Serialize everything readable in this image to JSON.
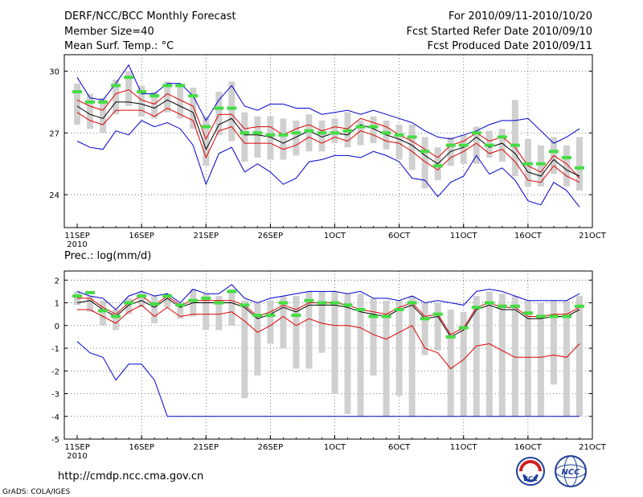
{
  "header": {
    "title": "DERF/NCC/BCC Monthly Forecast",
    "member_size": "Member Size=40",
    "variable": "Mean Surf. Temp.: °C",
    "period": "For 2010/09/11-2010/10/20",
    "start_date": "Fcst Started Refer Date 2010/09/10",
    "produced_date": "Fcst Produced Date 2010/09/11"
  },
  "footer": {
    "url": "http://cmdp.ncc.cma.gov.cn",
    "credit": "GrADS: COLA/IGES",
    "logo_bcc_text": "BCC",
    "logo_ncc_text": "NCC"
  },
  "colors": {
    "max_min": "#0000cc",
    "spread": "#dd0000",
    "mean": "#000000",
    "median": "#44dd44",
    "box": "#d0d0d0"
  },
  "chart_data": [
    {
      "type": "line",
      "id": "temp",
      "title": "Mean Surf. Temp.: °C",
      "days": 40,
      "ylim": [
        22.4,
        30.8
      ],
      "yticks": [
        24,
        27,
        30
      ],
      "xtick_days": [
        0,
        5,
        10,
        15,
        20,
        25,
        30,
        35,
        40
      ],
      "xtick_labels": [
        "11SEP",
        "16SEP",
        "21SEP",
        "26SEP",
        "1OCT",
        "6OCT",
        "11OCT",
        "16OCT",
        "21OCT"
      ],
      "xyear": "2010",
      "series": [
        {
          "name": "max",
          "values": [
            29.7,
            28.7,
            28.6,
            29.4,
            30.3,
            28.9,
            28.9,
            29.4,
            29.4,
            28.8,
            27.6,
            28.6,
            29.3,
            28.3,
            28.1,
            28.4,
            28.4,
            28.2,
            28.2,
            27.9,
            28.0,
            28.1,
            27.9,
            28.1,
            27.9,
            27.7,
            27.5,
            27.1,
            26.8,
            26.7,
            26.9,
            27.1,
            27.4,
            27.6,
            27.6,
            27.7,
            27.1,
            26.5,
            26.8,
            27.2
          ]
        },
        {
          "name": "upper",
          "values": [
            28.6,
            28.3,
            28.1,
            28.9,
            29.1,
            28.6,
            28.4,
            28.9,
            28.6,
            28.3,
            26.7,
            27.9,
            27.9,
            27.2,
            27.3,
            27.3,
            26.9,
            27.2,
            27.4,
            27.1,
            27.3,
            27.2,
            27.7,
            27.5,
            27.3,
            26.9,
            26.6,
            26.2,
            25.8,
            26.4,
            26.6,
            27.0,
            26.6,
            26.8,
            26.3,
            25.4,
            25.1,
            25.9,
            25.5,
            24.8
          ]
        },
        {
          "name": "mean",
          "values": [
            28.3,
            27.9,
            27.7,
            28.5,
            28.5,
            28.4,
            28.2,
            28.6,
            28.3,
            28.0,
            26.2,
            27.4,
            27.7,
            26.9,
            26.9,
            26.8,
            26.5,
            26.8,
            27.1,
            26.8,
            27.0,
            26.9,
            27.4,
            27.2,
            26.9,
            26.7,
            26.4,
            25.9,
            25.5,
            26.1,
            26.3,
            26.8,
            26.3,
            26.5,
            26.0,
            25.1,
            24.9,
            25.7,
            25.2,
            24.9
          ]
        },
        {
          "name": "lower",
          "values": [
            28.0,
            27.6,
            27.4,
            28.1,
            28.1,
            28.1,
            27.8,
            28.2,
            27.9,
            27.6,
            25.8,
            27.1,
            27.3,
            26.5,
            26.5,
            26.5,
            26.2,
            26.4,
            26.8,
            26.5,
            26.8,
            26.6,
            27.1,
            26.9,
            26.6,
            26.5,
            26.1,
            25.6,
            25.2,
            25.8,
            26.1,
            26.5,
            26.0,
            26.2,
            25.6,
            24.7,
            24.6,
            25.4,
            24.9,
            24.6
          ]
        },
        {
          "name": "min",
          "values": [
            26.6,
            26.3,
            26.2,
            27.1,
            26.9,
            27.6,
            27.3,
            27.5,
            27.2,
            26.4,
            24.5,
            26.0,
            26.3,
            25.1,
            25.5,
            25.1,
            24.5,
            24.8,
            25.6,
            25.7,
            25.9,
            25.9,
            25.8,
            26.1,
            25.9,
            25.6,
            24.8,
            24.7,
            23.9,
            24.6,
            24.9,
            25.9,
            25.0,
            25.3,
            24.7,
            23.7,
            23.5,
            24.6,
            24.2,
            23.4
          ]
        },
        {
          "name": "median",
          "values": [
            29.0,
            28.5,
            28.5,
            29.3,
            29.7,
            29.0,
            28.8,
            29.3,
            29.3,
            28.8,
            27.3,
            28.2,
            28.2,
            27.0,
            27.0,
            26.9,
            26.9,
            27.0,
            27.1,
            27.0,
            27.0,
            27.1,
            27.3,
            27.3,
            27.0,
            26.9,
            26.8,
            26.1,
            25.4,
            26.4,
            26.4,
            27.0,
            26.4,
            26.8,
            26.4,
            25.5,
            25.5,
            26.1,
            25.8,
            25.3
          ]
        },
        {
          "name": "box_top",
          "values": [
            29.4,
            28.9,
            28.7,
            29.6,
            30.0,
            29.3,
            29.0,
            29.5,
            29.4,
            29.2,
            27.8,
            29.0,
            29.5,
            28.0,
            27.8,
            27.8,
            27.7,
            27.6,
            27.9,
            27.6,
            27.7,
            28.0,
            27.6,
            27.8,
            27.6,
            27.4,
            27.4,
            26.8,
            26.3,
            26.8,
            26.9,
            27.3,
            27.1,
            27.2,
            28.6,
            26.7,
            26.4,
            26.8,
            26.4,
            26.8
          ]
        },
        {
          "name": "box_bottom",
          "values": [
            27.4,
            27.2,
            27.0,
            27.9,
            28.3,
            27.8,
            27.7,
            28.0,
            27.7,
            27.2,
            25.4,
            26.9,
            26.6,
            25.6,
            25.8,
            25.7,
            25.7,
            25.9,
            26.1,
            26.1,
            26.5,
            26.3,
            26.4,
            26.5,
            26.2,
            25.7,
            25.2,
            24.3,
            24.7,
            25.4,
            25.5,
            25.5,
            25.8,
            25.6,
            24.9,
            24.4,
            24.4,
            25.0,
            24.4,
            24.2
          ]
        }
      ]
    },
    {
      "type": "line",
      "id": "prec",
      "title": "Prec.: log(mm/d)",
      "days": 40,
      "ylim": [
        -5,
        2.4
      ],
      "yticks": [
        -5,
        -4,
        -3,
        -2,
        -1,
        0,
        1,
        2
      ],
      "xtick_days": [
        0,
        5,
        10,
        15,
        20,
        25,
        30,
        35,
        40
      ],
      "xtick_labels": [
        "11SEP",
        "16SEP",
        "21SEP",
        "26SEP",
        "1OCT",
        "6OCT",
        "11OCT",
        "16OCT",
        "21OCT"
      ],
      "xyear": "2010",
      "series": [
        {
          "name": "max",
          "values": [
            1.5,
            1.3,
            1.2,
            0.7,
            1.3,
            1.5,
            1.3,
            1.4,
            1.0,
            1.6,
            1.4,
            1.4,
            1.8,
            1.2,
            1.0,
            1.2,
            1.3,
            1.4,
            1.5,
            1.5,
            1.5,
            1.4,
            1.5,
            1.2,
            1.2,
            1.1,
            1.3,
            1.0,
            1.1,
            1.0,
            0.9,
            1.5,
            1.6,
            1.5,
            1.3,
            1.1,
            1.1,
            1.1,
            1.1,
            1.4
          ]
        },
        {
          "name": "upper",
          "values": [
            1.2,
            1.2,
            0.8,
            0.5,
            1.0,
            1.3,
            0.9,
            1.3,
            0.9,
            1.1,
            1.1,
            1.1,
            1.1,
            0.9,
            0.4,
            0.6,
            0.9,
            0.7,
            1.0,
            1.0,
            1.0,
            0.9,
            0.7,
            0.6,
            0.5,
            0.8,
            1.0,
            0.4,
            0.5,
            -0.4,
            -0.1,
            0.8,
            1.0,
            0.8,
            0.8,
            0.4,
            0.4,
            0.5,
            0.5,
            0.8
          ]
        },
        {
          "name": "mean",
          "values": [
            1.0,
            1.1,
            0.7,
            0.4,
            0.9,
            1.1,
            0.8,
            1.2,
            0.8,
            1.0,
            1.0,
            1.0,
            1.0,
            0.8,
            0.3,
            0.5,
            0.8,
            0.6,
            0.9,
            0.9,
            0.9,
            0.8,
            0.6,
            0.5,
            0.4,
            0.7,
            0.9,
            0.3,
            0.4,
            -0.5,
            -0.2,
            0.7,
            0.9,
            0.7,
            0.7,
            0.3,
            0.3,
            0.4,
            0.4,
            0.7
          ]
        },
        {
          "name": "lower",
          "values": [
            0.7,
            0.7,
            0.4,
            0.1,
            0.6,
            0.9,
            0.4,
            0.8,
            0.4,
            0.5,
            0.5,
            0.5,
            0.6,
            0.2,
            -0.3,
            0.0,
            0.4,
            0.0,
            0.3,
            0.1,
            0.0,
            0.0,
            -0.1,
            -0.4,
            -0.6,
            -0.3,
            0.0,
            -1.0,
            -1.2,
            -1.9,
            -1.5,
            -0.9,
            -0.8,
            -1.1,
            -1.4,
            -1.4,
            -1.4,
            -1.3,
            -1.4,
            -0.8
          ]
        },
        {
          "name": "min",
          "values": [
            -0.7,
            -1.2,
            -1.4,
            -2.4,
            -1.7,
            -1.7,
            -2.4,
            -4.0,
            -4.0,
            -4.0,
            -4.0,
            -4.0,
            -4.0,
            -4.0,
            -4.0,
            -4.0,
            -4.0,
            -4.0,
            -4.0,
            -4.0,
            -4.0,
            -4.0,
            -4.0,
            -4.0,
            -4.0,
            -4.0,
            -4.0,
            -4.0,
            -4.0,
            -4.0,
            -4.0,
            -4.0,
            -4.0,
            -4.0,
            -4.0,
            -4.0,
            -4.0,
            -4.0,
            -4.0,
            -4.0
          ]
        },
        {
          "name": "median",
          "values": [
            1.3,
            1.45,
            0.65,
            0.4,
            1.0,
            1.3,
            0.95,
            1.3,
            0.9,
            1.1,
            1.2,
            1.0,
            1.5,
            0.9,
            0.45,
            0.45,
            1.0,
            0.45,
            1.1,
            1.0,
            1.0,
            0.9,
            0.7,
            0.4,
            0.4,
            0.7,
            1.0,
            0.3,
            0.5,
            -0.5,
            -0.1,
            0.8,
            1.0,
            0.85,
            0.85,
            0.55,
            0.4,
            0.4,
            0.4,
            0.85
          ]
        },
        {
          "name": "box_top",
          "values": [
            1.5,
            1.3,
            1.1,
            0.7,
            1.2,
            1.5,
            1.3,
            1.4,
            1.0,
            1.6,
            1.4,
            1.3,
            1.6,
            1.1,
            1.0,
            1.1,
            1.3,
            1.3,
            1.5,
            1.5,
            1.5,
            1.4,
            1.4,
            1.2,
            1.1,
            1.1,
            1.3,
            1.0,
            1.0,
            0.7,
            0.6,
            1.3,
            1.5,
            1.4,
            1.3,
            1.1,
            1.0,
            1.1,
            1.1,
            1.3
          ]
        },
        {
          "name": "box_bottom",
          "values": [
            0.9,
            0.6,
            0.0,
            -0.2,
            0.5,
            0.8,
            0.1,
            0.8,
            0.3,
            0.4,
            -0.2,
            -0.2,
            0.0,
            -3.2,
            -2.2,
            -0.8,
            -1.0,
            -1.9,
            -1.9,
            -1.2,
            -3.0,
            -3.9,
            -4.0,
            -2.2,
            -4.0,
            -3.1,
            -4.0,
            -1.3,
            -1.1,
            -4.0,
            -4.0,
            -4.0,
            -4.0,
            -4.0,
            -4.0,
            -4.0,
            -4.0,
            -2.6,
            -4.0,
            -4.0
          ]
        }
      ]
    }
  ]
}
